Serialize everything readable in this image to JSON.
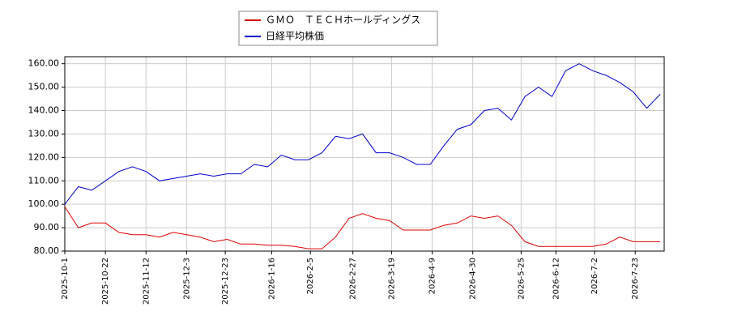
{
  "chart_data": {
    "type": "line",
    "x": [
      "2025-10-1",
      "2025-10-8",
      "2025-10-15",
      "2025-10-22",
      "2025-10-29",
      "2025-11-5",
      "2025-11-12",
      "2025-11-19",
      "2025-11-26",
      "2025-12-3",
      "2025-12-10",
      "2025-12-17",
      "2025-12-24",
      "2025-12-31",
      "2026-1-7",
      "2026-1-14",
      "2026-1-21",
      "2026-1-28",
      "2026-2-4",
      "2026-2-11",
      "2026-2-18",
      "2026-2-25",
      "2026-3-4",
      "2026-3-11",
      "2026-3-18",
      "2026-3-25",
      "2026-4-1",
      "2026-4-8",
      "2026-4-15",
      "2026-4-22",
      "2026-4-29",
      "2026-5-6",
      "2026-5-13",
      "2026-5-20",
      "2026-5-27",
      "2026-6-3",
      "2026-6-10",
      "2026-6-17",
      "2026-6-24",
      "2026-7-1",
      "2026-7-8",
      "2026-7-15",
      "2026-7-22",
      "2026-7-29",
      "2026-8-5"
    ],
    "series": [
      {
        "name": "ＧＭＯ　ＴＥＣＨホールディングス",
        "color": "#dd0000",
        "values": [
          99,
          90,
          92,
          92,
          88,
          87,
          87,
          86,
          88,
          87,
          86,
          84,
          85,
          83,
          83,
          82.5,
          82.5,
          82,
          81,
          81,
          86,
          94,
          96,
          94,
          93,
          89,
          89,
          89,
          91,
          92,
          95,
          94,
          95,
          91,
          84,
          82,
          82,
          82,
          82,
          82,
          83,
          86,
          84,
          84,
          84
        ]
      },
      {
        "name": "日経平均株価",
        "color": "#0000cc",
        "values": [
          100,
          107.5,
          106,
          110,
          114,
          116,
          114,
          110,
          111,
          112,
          113,
          112,
          113,
          113,
          117,
          116,
          121,
          119,
          119,
          122,
          129,
          128,
          130,
          122,
          122,
          120,
          117,
          117,
          125,
          132,
          134,
          140,
          141,
          136,
          146,
          150,
          146,
          157,
          160,
          157,
          155,
          152,
          148,
          141,
          147
        ]
      }
    ],
    "xlim": [
      "2025-10-1",
      "2026-8-7"
    ],
    "xticks": [
      "2025-10-1",
      "2025-10-22",
      "2025-11-12",
      "2025-12-3",
      "2025-12-23",
      "2026-1-16",
      "2026-2-5",
      "2026-2-27",
      "2026-3-19",
      "2026-4-9",
      "2026-4-30",
      "2026-5-25",
      "2026-6-12",
      "2026-7-2",
      "2026-7-23"
    ],
    "ylim": [
      80,
      163
    ],
    "yticks": [
      {
        "value": 80,
        "label": "80.00"
      },
      {
        "value": 90,
        "label": "90.00"
      },
      {
        "value": 100,
        "label": "100.00"
      },
      {
        "value": 110,
        "label": "110.00"
      },
      {
        "value": 120,
        "label": "120.00"
      },
      {
        "value": 130,
        "label": "130.00"
      },
      {
        "value": 140,
        "label": "140.00"
      },
      {
        "value": 150,
        "label": "150.00"
      },
      {
        "value": 160,
        "label": "160.00"
      }
    ],
    "grid": true
  }
}
